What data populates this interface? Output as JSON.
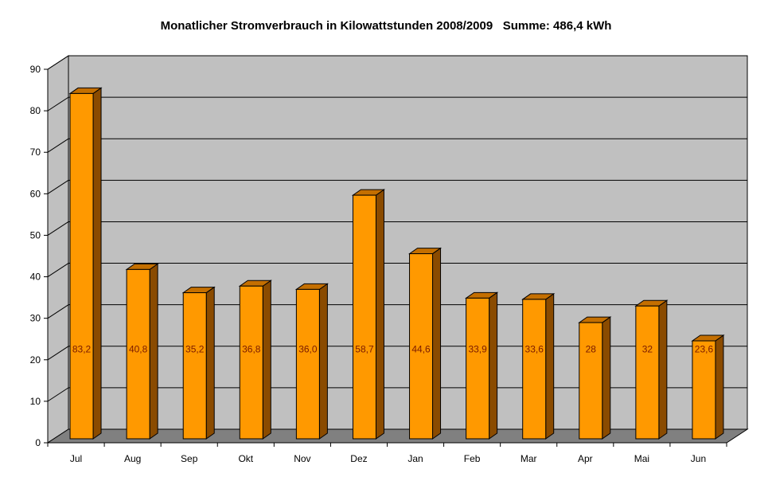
{
  "chart_data": {
    "type": "bar",
    "title": "Monatlicher Stromverbrauch in Kilowattstunden 2008/2009   Summe: 486,4 kWh",
    "categories": [
      "Jul",
      "Aug",
      "Sep",
      "Okt",
      "Nov",
      "Dez",
      "Jan",
      "Feb",
      "Mar",
      "Apr",
      "Mai",
      "Jun"
    ],
    "values": [
      83.2,
      40.8,
      35.2,
      36.8,
      36.0,
      58.7,
      44.6,
      33.9,
      33.6,
      28,
      32,
      23.6
    ],
    "value_labels": [
      "83,2",
      "40,8",
      "35,2",
      "36,8",
      "36,0",
      "58,7",
      "44,6",
      "33,9",
      "33,6",
      "28",
      "32",
      "23,6"
    ],
    "y_ticks": [
      "0",
      "10",
      "20",
      "30",
      "40",
      "50",
      "60",
      "70",
      "80",
      "90"
    ],
    "ylim": [
      0,
      90
    ],
    "grid": true,
    "legend": "none",
    "colors": {
      "bar_front": "#ff9900",
      "bar_side": "#8a4b00",
      "bar_top": "#c46f00",
      "plot_wall": "#c0c0c0",
      "floor": "#808080",
      "label_text": "#7a1a00"
    }
  }
}
